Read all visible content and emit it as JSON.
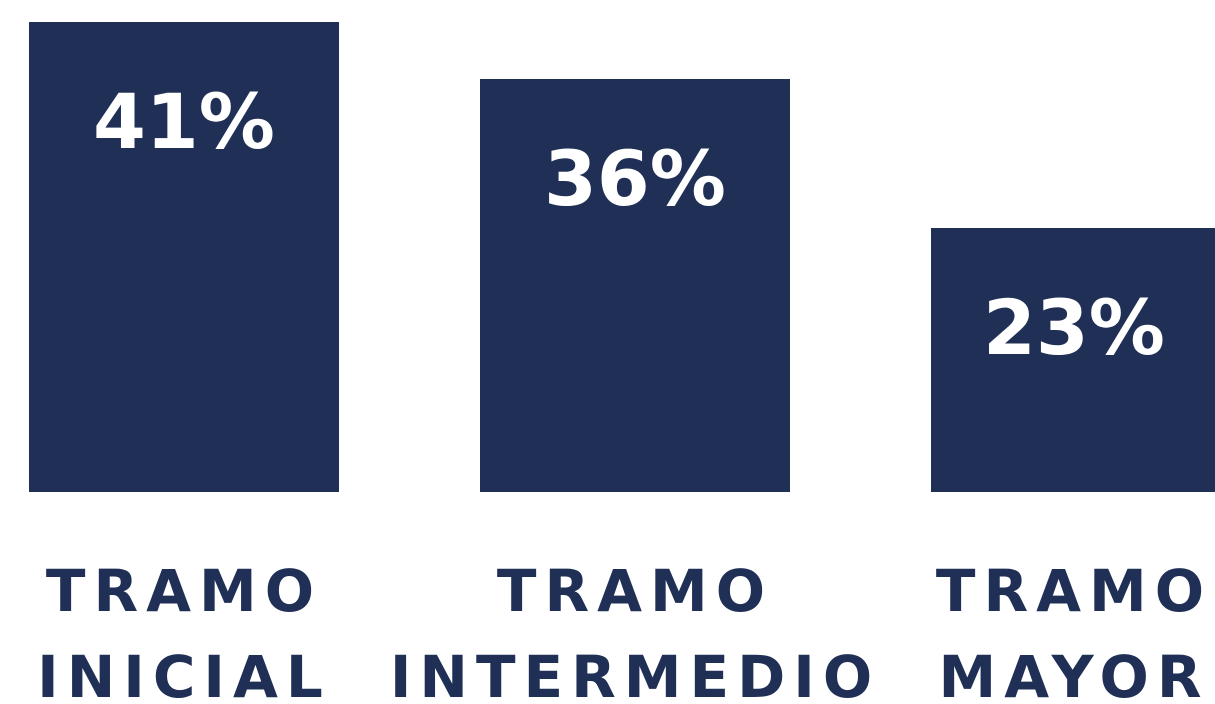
{
  "chart_data": {
    "type": "bar",
    "categories": [
      "TRAMO INICIAL",
      "TRAMO INTERMEDIO",
      "TRAMO MAYOR"
    ],
    "values": [
      41,
      36,
      23
    ],
    "value_labels": [
      "41%",
      "36%",
      "23%"
    ],
    "color": "#1f2f55",
    "ylim": [
      0,
      41
    ]
  }
}
